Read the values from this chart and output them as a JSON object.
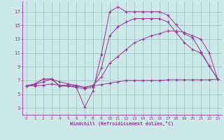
{
  "xlabel": "Windchill (Refroidissement éolien,°C)",
  "xlim": [
    -0.5,
    23.5
  ],
  "ylim": [
    2,
    18.5
  ],
  "xticks": [
    0,
    1,
    2,
    3,
    4,
    5,
    6,
    7,
    8,
    9,
    10,
    11,
    12,
    13,
    14,
    15,
    16,
    17,
    18,
    19,
    20,
    21,
    22,
    23
  ],
  "yticks": [
    3,
    5,
    7,
    9,
    11,
    13,
    15,
    17
  ],
  "bg_color": "#cde8e8",
  "line_color": "#993399",
  "grid_color": "#9bbfbf",
  "series1_x": [
    0,
    1,
    2,
    3,
    4,
    5,
    6,
    7,
    8,
    9,
    10,
    11,
    12,
    13,
    14,
    15,
    16,
    17,
    18,
    19,
    20,
    21,
    22,
    23
  ],
  "series1_y": [
    6.2,
    6.5,
    7.2,
    7.2,
    6.2,
    6.2,
    6.0,
    3.1,
    5.5,
    10.8,
    17.0,
    17.7,
    17.0,
    17.0,
    17.0,
    17.0,
    17.0,
    16.5,
    15.1,
    13.8,
    13.2,
    11.2,
    9.1,
    7.2
  ],
  "series2_x": [
    0,
    1,
    2,
    3,
    4,
    5,
    6,
    7,
    8,
    9,
    10,
    11,
    12,
    13,
    14,
    15,
    16,
    17,
    18,
    19,
    20,
    21,
    22,
    23
  ],
  "series2_y": [
    6.2,
    6.5,
    7.2,
    7.2,
    6.2,
    6.2,
    6.0,
    5.8,
    6.0,
    8.8,
    13.5,
    14.8,
    15.5,
    16.0,
    16.0,
    16.0,
    16.0,
    15.5,
    14.0,
    12.5,
    11.5,
    11.0,
    9.1,
    7.2
  ],
  "series3_x": [
    0,
    1,
    2,
    3,
    4,
    5,
    6,
    7,
    8,
    9,
    10,
    11,
    12,
    13,
    14,
    15,
    16,
    17,
    18,
    19,
    20,
    21,
    22,
    23
  ],
  "series3_y": [
    6.2,
    6.4,
    6.8,
    7.2,
    6.8,
    6.5,
    6.3,
    6.0,
    6.3,
    7.5,
    9.5,
    10.5,
    11.5,
    12.5,
    13.0,
    13.5,
    13.8,
    14.2,
    14.2,
    14.0,
    13.5,
    13.0,
    11.0,
    7.2
  ],
  "series4_x": [
    0,
    1,
    2,
    3,
    4,
    5,
    6,
    7,
    8,
    9,
    10,
    11,
    12,
    13,
    14,
    15,
    16,
    17,
    18,
    19,
    20,
    21,
    22,
    23
  ],
  "series4_y": [
    6.2,
    6.2,
    6.3,
    6.5,
    6.3,
    6.3,
    6.2,
    6.0,
    6.2,
    6.4,
    6.6,
    6.8,
    7.0,
    7.0,
    7.0,
    7.0,
    7.0,
    7.1,
    7.1,
    7.1,
    7.1,
    7.1,
    7.1,
    7.2
  ]
}
